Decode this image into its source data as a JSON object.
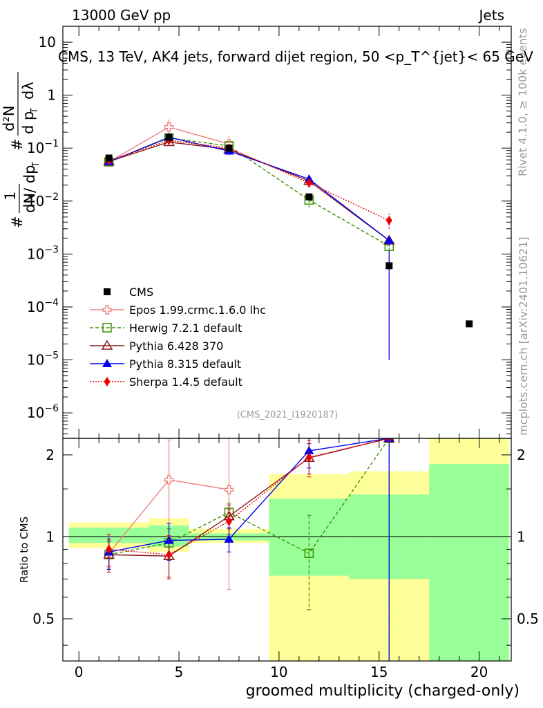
{
  "header": {
    "left": "13000 GeV pp",
    "right": "Jets"
  },
  "side_labels": {
    "rivet": "Rivet 4.1.0, ≥ 100k events",
    "mcplots": "mcplots.cern.ch [arXiv:2401.10621]"
  },
  "chart_data": {
    "type": "line",
    "title": "CMS, 13 TeV, AK4 jets, forward dijet region, 50 <p_T^{jet}< 65 GeV",
    "analysis_tag": "(CMS_2021_I1920187)",
    "xlabel": "groomed multiplicity (charged-only)",
    "ylabel": "1/dN/dpT  d2N/dpT dλ",
    "ratio_ylabel": "Ratio to CMS",
    "xlim": [
      -0.8,
      21.6
    ],
    "ylim": [
      3.3e-07,
      20
    ],
    "ratio_ylim": [
      0.35,
      2.3
    ],
    "x_ticks": [
      0,
      5,
      10,
      15,
      20
    ],
    "y_ticks": [
      {
        "value": 1e-06,
        "label": "10",
        "exp": "−6"
      },
      {
        "value": 1e-05,
        "label": "10",
        "exp": "−5"
      },
      {
        "value": 0.0001,
        "label": "10",
        "exp": "−4"
      },
      {
        "value": 0.001,
        "label": "10",
        "exp": "−3"
      },
      {
        "value": 0.01,
        "label": "10",
        "exp": "−2"
      },
      {
        "value": 0.1,
        "label": "10",
        "exp": "−1"
      },
      {
        "value": 1,
        "label": "1",
        "exp": ""
      },
      {
        "value": 10,
        "label": "10",
        "exp": ""
      }
    ],
    "ratio_ticks": [
      0.5,
      1,
      2
    ],
    "bin_edges": [
      -0.5,
      3.5,
      5.5,
      9.5,
      13.5,
      17.5,
      21.5
    ],
    "data": {
      "name": "CMS",
      "x": [
        1.5,
        4.5,
        7.5,
        11.5,
        15.5,
        19.5
      ],
      "y": [
        0.065,
        0.16,
        0.1,
        0.012,
        0.0006,
        4.8e-05
      ],
      "err_up": [
        0.005,
        0.01,
        0.008,
        0.002,
        0.00055,
        0
      ],
      "err_down": [
        0.005,
        0.01,
        0.008,
        0.002,
        0.00059,
        0
      ]
    },
    "bands": [
      {
        "xlow": -0.5,
        "xhigh": 3.5,
        "inner": [
          0.95,
          1.08
        ],
        "outer": [
          0.91,
          1.13
        ]
      },
      {
        "xlow": 3.5,
        "xhigh": 5.5,
        "inner": [
          0.92,
          1.1
        ],
        "outer": [
          0.88,
          1.17
        ]
      },
      {
        "xlow": 5.5,
        "xhigh": 9.5,
        "inner": [
          0.97,
          1.03
        ],
        "outer": [
          0.95,
          1.07
        ]
      },
      {
        "xlow": 9.5,
        "xhigh": 13.5,
        "inner": [
          0.72,
          1.38
        ],
        "outer": [
          0.35,
          1.7
        ]
      },
      {
        "xlow": 13.5,
        "xhigh": 17.5,
        "inner": [
          0.7,
          1.43
        ],
        "outer": [
          0.35,
          1.74
        ]
      },
      {
        "xlow": 17.5,
        "xhigh": 21.5,
        "inner": [
          0.35,
          1.85
        ],
        "outer": [
          0.35,
          2.3
        ]
      }
    ],
    "series": [
      {
        "name": "Epos 1.99.crmc.1.6.0 lhc",
        "color": "#f08080",
        "dash": "",
        "marker": "open-cross",
        "x": [
          1.5,
          4.5,
          7.5
        ],
        "y": [
          0.055,
          0.25,
          0.12
        ],
        "err": [
          0.005,
          0.1,
          0.05
        ],
        "ratio": [
          0.87,
          1.62,
          1.49
        ],
        "ratio_err": [
          0.1,
          0.65,
          0.85
        ]
      },
      {
        "name": "Herwig 7.2.1 default",
        "color": "#3a8f00",
        "dash": "5,3",
        "marker": "open-square",
        "x": [
          1.5,
          4.5,
          7.5,
          11.5,
          15.5
        ],
        "y": [
          0.055,
          0.155,
          0.11,
          0.0105,
          0.0014
        ],
        "err": [
          0.004,
          0.01,
          0.01,
          0.003,
          0.0003
        ],
        "ratio": [
          0.86,
          0.95,
          1.23,
          0.87,
          2.3
        ],
        "ratio_err": [
          0.1,
          0.12,
          0.1,
          0.33,
          0
        ]
      },
      {
        "name": "Pythia 6.428 370",
        "color": "#8b1a1a",
        "dash": "",
        "marker": "open-triangle",
        "x": [
          1.5,
          4.5,
          7.5,
          11.5,
          15.5
        ],
        "y": [
          0.056,
          0.13,
          0.095,
          0.024,
          0.0018
        ],
        "err": [
          0.004,
          0.01,
          0.008,
          0.004,
          0.0004
        ],
        "ratio": [
          0.86,
          0.85,
          1.19,
          1.95,
          2.3
        ],
        "ratio_err": [
          0.12,
          0.15,
          0.12,
          0.25,
          0
        ]
      },
      {
        "name": "Pythia 8.315 default",
        "color": "#0000ee",
        "dash": "",
        "marker": "filled-triangle",
        "x": [
          1.5,
          4.5,
          7.5,
          11.5,
          15.5
        ],
        "y": [
          0.055,
          0.16,
          0.088,
          0.026,
          0.0018
        ],
        "err": [
          0.004,
          0.01,
          0.008,
          0.004,
          0.0004
        ],
        "ratio": [
          0.88,
          0.97,
          0.98,
          2.07,
          2.3
        ],
        "ratio_err": [
          0.12,
          0.15,
          0.1,
          0.28,
          0
        ]
      },
      {
        "name": "Sherpa 1.4.5 default",
        "color": "#ee0000",
        "dash": "2,2",
        "marker": "filled-diamond",
        "x": [
          1.5,
          4.5,
          7.5,
          11.5,
          15.5
        ],
        "y": [
          0.058,
          0.14,
          0.1,
          0.022,
          0.0043
        ],
        "err": [
          0.004,
          0.01,
          0.008,
          0.005,
          0.0015
        ],
        "ratio": [
          0.9,
          0.86,
          1.14,
          1.96,
          2.3
        ],
        "ratio_err": [
          0.12,
          0.15,
          0.12,
          0.3,
          0
        ]
      }
    ]
  }
}
